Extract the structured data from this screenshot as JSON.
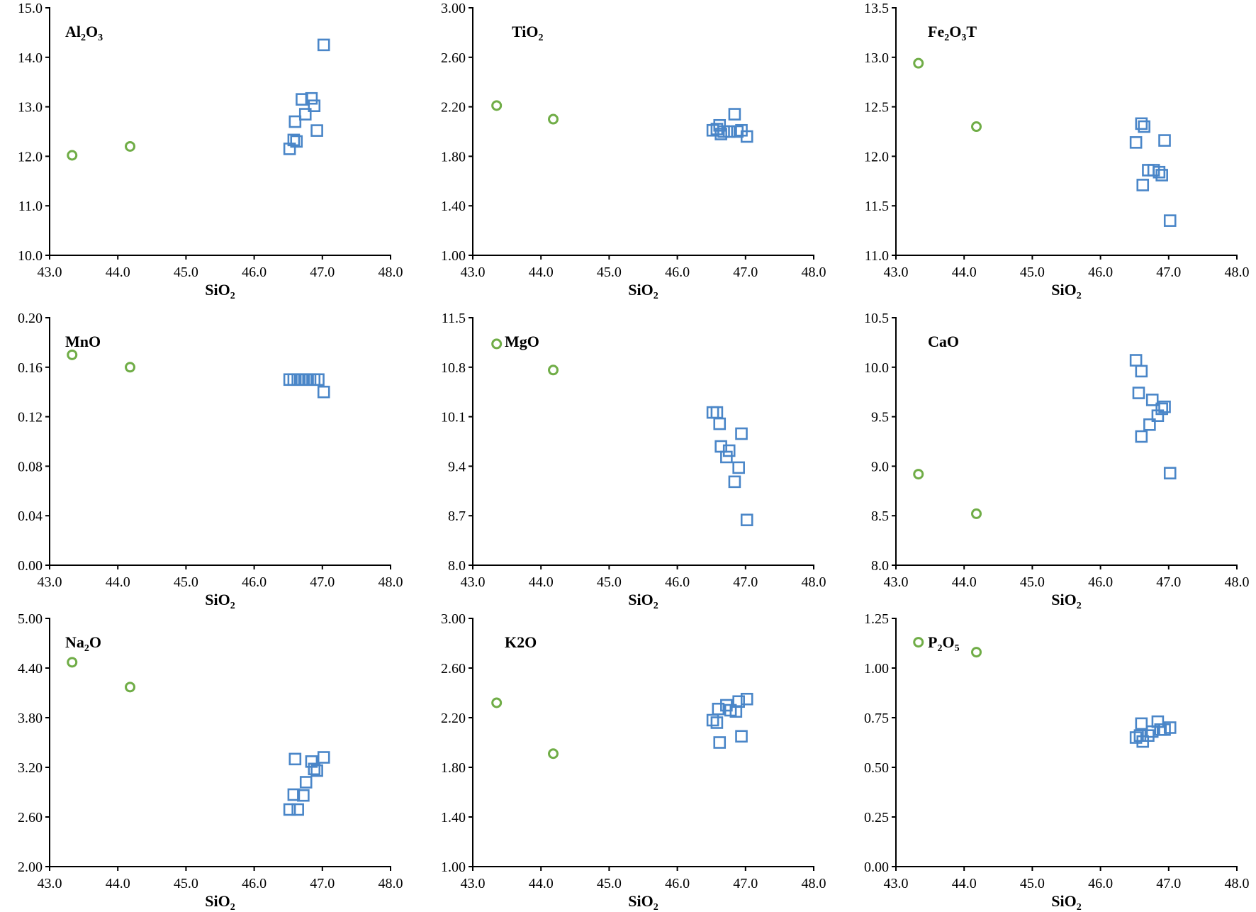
{
  "chart_data": [
    {
      "type": "scatter",
      "title": "Al2O3",
      "title_parts": [
        {
          "t": "Al"
        },
        {
          "t": "2",
          "sub": true
        },
        {
          "t": "O"
        },
        {
          "t": "3",
          "sub": true
        }
      ],
      "xlabel": "SiO2",
      "xlim": [
        43.0,
        48.0
      ],
      "ylim": [
        10.0,
        15.0
      ],
      "xticks": [
        "43.0",
        "44.0",
        "45.0",
        "46.0",
        "47.0",
        "48.0"
      ],
      "yticks": [
        "10.0",
        "11.0",
        "12.0",
        "13.0",
        "14.0",
        "15.0"
      ],
      "series": [
        {
          "name": "circles",
          "marker": "circle",
          "color": "#70ad47",
          "x": [
            43.33,
            44.18
          ],
          "y": [
            12.02,
            12.2
          ]
        },
        {
          "name": "squares",
          "marker": "square",
          "color": "#4a86c8",
          "x": [
            46.52,
            46.58,
            46.6,
            46.62,
            46.7,
            46.75,
            46.84,
            46.88,
            46.92,
            47.02
          ],
          "y": [
            12.15,
            12.33,
            12.7,
            12.3,
            13.15,
            12.85,
            13.17,
            13.02,
            12.52,
            14.25
          ]
        }
      ]
    },
    {
      "type": "scatter",
      "title": "TiO2",
      "title_parts": [
        {
          "t": "TiO"
        },
        {
          "t": "2",
          "sub": true
        }
      ],
      "xlabel": "SiO2",
      "xlim": [
        43.0,
        48.0
      ],
      "ylim": [
        1.0,
        3.0
      ],
      "xticks": [
        "43.0",
        "44.0",
        "45.0",
        "46.0",
        "47.0",
        "48.0"
      ],
      "yticks": [
        "1.00",
        "1.40",
        "1.80",
        "2.20",
        "2.60",
        "3.00"
      ],
      "series": [
        {
          "name": "circles",
          "marker": "circle",
          "color": "#70ad47",
          "x": [
            43.35,
            44.18
          ],
          "y": [
            2.21,
            2.1
          ]
        },
        {
          "name": "squares",
          "marker": "square",
          "color": "#4a86c8",
          "x": [
            46.52,
            46.58,
            46.62,
            46.64,
            46.68,
            46.76,
            46.84,
            46.88,
            46.94,
            47.02
          ],
          "y": [
            2.01,
            2.02,
            2.05,
            1.98,
            2.0,
            2.0,
            2.14,
            2.0,
            2.01,
            1.96
          ]
        }
      ]
    },
    {
      "type": "scatter",
      "title": "Fe2O3T",
      "title_parts": [
        {
          "t": "Fe"
        },
        {
          "t": "2",
          "sub": true
        },
        {
          "t": "O"
        },
        {
          "t": "3",
          "sub": true
        },
        {
          "t": "T"
        }
      ],
      "xlabel": "SiO2",
      "xlim": [
        43.0,
        48.0
      ],
      "ylim": [
        11.0,
        13.5
      ],
      "xticks": [
        "43.0",
        "44.0",
        "45.0",
        "46.0",
        "47.0",
        "48.0"
      ],
      "yticks": [
        "11.0",
        "11.5",
        "12.0",
        "12.5",
        "13.0",
        "13.5"
      ],
      "series": [
        {
          "name": "circles",
          "marker": "circle",
          "color": "#70ad47",
          "x": [
            43.33,
            44.18
          ],
          "y": [
            12.94,
            12.3
          ]
        },
        {
          "name": "squares",
          "marker": "square",
          "color": "#4a86c8",
          "x": [
            46.52,
            46.6,
            46.62,
            46.64,
            46.7,
            46.78,
            46.86,
            46.9,
            46.94,
            47.02
          ],
          "y": [
            12.14,
            12.33,
            11.71,
            12.3,
            11.86,
            11.86,
            11.84,
            11.81,
            12.16,
            11.35
          ]
        }
      ]
    },
    {
      "type": "scatter",
      "title": "MnO",
      "title_parts": [
        {
          "t": "MnO"
        }
      ],
      "xlabel": "SiO2",
      "xlim": [
        43.0,
        48.0
      ],
      "ylim": [
        0.0,
        0.2
      ],
      "xticks": [
        "43.0",
        "44.0",
        "45.0",
        "46.0",
        "47.0",
        "48.0"
      ],
      "yticks": [
        "0.00",
        "0.04",
        "0.08",
        "0.12",
        "0.16",
        "0.20"
      ],
      "series": [
        {
          "name": "circles",
          "marker": "circle",
          "color": "#70ad47",
          "x": [
            43.33,
            44.18
          ],
          "y": [
            0.17,
            0.16
          ]
        },
        {
          "name": "squares",
          "marker": "square",
          "color": "#4a86c8",
          "x": [
            46.52,
            46.58,
            46.64,
            46.7,
            46.76,
            46.82,
            46.88,
            46.94,
            47.02
          ],
          "y": [
            0.15,
            0.15,
            0.15,
            0.15,
            0.15,
            0.15,
            0.15,
            0.15,
            0.14
          ]
        }
      ]
    },
    {
      "type": "scatter",
      "title": "MgO",
      "title_parts": [
        {
          "t": "MgO"
        }
      ],
      "xlabel": "SiO2",
      "xlim": [
        43.0,
        48.0
      ],
      "ylim": [
        8.0,
        11.5
      ],
      "xticks": [
        "43.0",
        "44.0",
        "45.0",
        "46.0",
        "47.0",
        "48.0"
      ],
      "yticks": [
        "8.0",
        "8.7",
        "9.4",
        "10.1",
        "10.8",
        "11.5"
      ],
      "series": [
        {
          "name": "circles",
          "marker": "circle",
          "color": "#70ad47",
          "x": [
            43.35,
            44.18
          ],
          "y": [
            11.13,
            10.76
          ]
        },
        {
          "name": "squares",
          "marker": "square",
          "color": "#4a86c8",
          "x": [
            46.52,
            46.58,
            46.62,
            46.64,
            46.72,
            46.76,
            46.84,
            46.9,
            46.94,
            47.02
          ],
          "y": [
            10.16,
            10.16,
            10.0,
            9.68,
            9.53,
            9.62,
            9.18,
            9.38,
            9.86,
            8.64
          ]
        }
      ]
    },
    {
      "type": "scatter",
      "title": "CaO",
      "title_parts": [
        {
          "t": "CaO"
        }
      ],
      "xlabel": "SiO2",
      "xlim": [
        43.0,
        48.0
      ],
      "ylim": [
        8.0,
        10.5
      ],
      "xticks": [
        "43.0",
        "44.0",
        "45.0",
        "46.0",
        "47.0",
        "48.0"
      ],
      "yticks": [
        "8.0",
        "8.5",
        "9.0",
        "9.5",
        "10.0",
        "10.5"
      ],
      "series": [
        {
          "name": "circles",
          "marker": "circle",
          "color": "#70ad47",
          "x": [
            43.33,
            44.18
          ],
          "y": [
            8.92,
            8.52
          ]
        },
        {
          "name": "squares",
          "marker": "square",
          "color": "#4a86c8",
          "x": [
            46.52,
            46.56,
            46.6,
            46.6,
            46.72,
            46.76,
            46.84,
            46.9,
            46.94,
            47.02
          ],
          "y": [
            10.07,
            9.74,
            9.96,
            9.3,
            9.42,
            9.67,
            9.51,
            9.58,
            9.6,
            8.93
          ]
        }
      ]
    },
    {
      "type": "scatter",
      "title": "Na2O",
      "title_parts": [
        {
          "t": "Na"
        },
        {
          "t": "2",
          "sub": true
        },
        {
          "t": "O"
        }
      ],
      "xlabel": "SiO2",
      "xlim": [
        43.0,
        48.0
      ],
      "ylim": [
        2.0,
        5.0
      ],
      "xticks": [
        "43.0",
        "44.0",
        "45.0",
        "46.0",
        "47.0",
        "48.0"
      ],
      "yticks": [
        "2.00",
        "2.60",
        "3.20",
        "3.80",
        "4.40",
        "5.00"
      ],
      "series": [
        {
          "name": "circles",
          "marker": "circle",
          "color": "#70ad47",
          "x": [
            43.33,
            44.18
          ],
          "y": [
            4.47,
            4.17
          ]
        },
        {
          "name": "squares",
          "marker": "square",
          "color": "#4a86c8",
          "x": [
            46.52,
            46.58,
            46.6,
            46.64,
            46.72,
            46.76,
            46.84,
            46.88,
            46.92,
            47.02
          ],
          "y": [
            2.69,
            2.87,
            3.3,
            2.69,
            2.86,
            3.02,
            3.27,
            3.18,
            3.16,
            3.32
          ]
        }
      ]
    },
    {
      "type": "scatter",
      "title": "K2O",
      "title_parts": [
        {
          "t": "K2O"
        }
      ],
      "xlabel": "SiO2",
      "xlim": [
        43.0,
        48.0
      ],
      "ylim": [
        1.0,
        3.0
      ],
      "xticks": [
        "43.0",
        "44.0",
        "45.0",
        "46.0",
        "47.0",
        "48.0"
      ],
      "yticks": [
        "1.00",
        "1.40",
        "1.80",
        "2.20",
        "2.60",
        "3.00"
      ],
      "series": [
        {
          "name": "circles",
          "marker": "circle",
          "color": "#70ad47",
          "x": [
            43.35,
            44.18
          ],
          "y": [
            2.32,
            1.91
          ]
        },
        {
          "name": "squares",
          "marker": "square",
          "color": "#4a86c8",
          "x": [
            46.52,
            46.58,
            46.6,
            46.62,
            46.72,
            46.78,
            46.86,
            46.9,
            46.94,
            47.02
          ],
          "y": [
            2.18,
            2.16,
            2.27,
            2.0,
            2.3,
            2.26,
            2.25,
            2.33,
            2.05,
            2.35
          ]
        }
      ]
    },
    {
      "type": "scatter",
      "title": "P2O5",
      "title_parts": [
        {
          "t": "P"
        },
        {
          "t": "2",
          "sub": true
        },
        {
          "t": "O"
        },
        {
          "t": "5",
          "sub": true
        }
      ],
      "xlabel": "SiO2",
      "xlim": [
        43.0,
        48.0
      ],
      "ylim": [
        0.0,
        1.25
      ],
      "xticks": [
        "43.0",
        "44.0",
        "45.0",
        "46.0",
        "47.0",
        "48.0"
      ],
      "yticks": [
        "0.00",
        "0.25",
        "0.50",
        "0.75",
        "1.00",
        "1.25"
      ],
      "series": [
        {
          "name": "circles",
          "marker": "circle",
          "color": "#70ad47",
          "x": [
            43.33,
            44.18
          ],
          "y": [
            1.13,
            1.08
          ]
        },
        {
          "name": "squares",
          "marker": "square",
          "color": "#4a86c8",
          "x": [
            46.52,
            46.58,
            46.6,
            46.62,
            46.7,
            46.76,
            46.84,
            46.88,
            46.94,
            47.02
          ],
          "y": [
            0.65,
            0.66,
            0.72,
            0.63,
            0.66,
            0.68,
            0.73,
            0.69,
            0.69,
            0.7
          ]
        }
      ]
    }
  ]
}
